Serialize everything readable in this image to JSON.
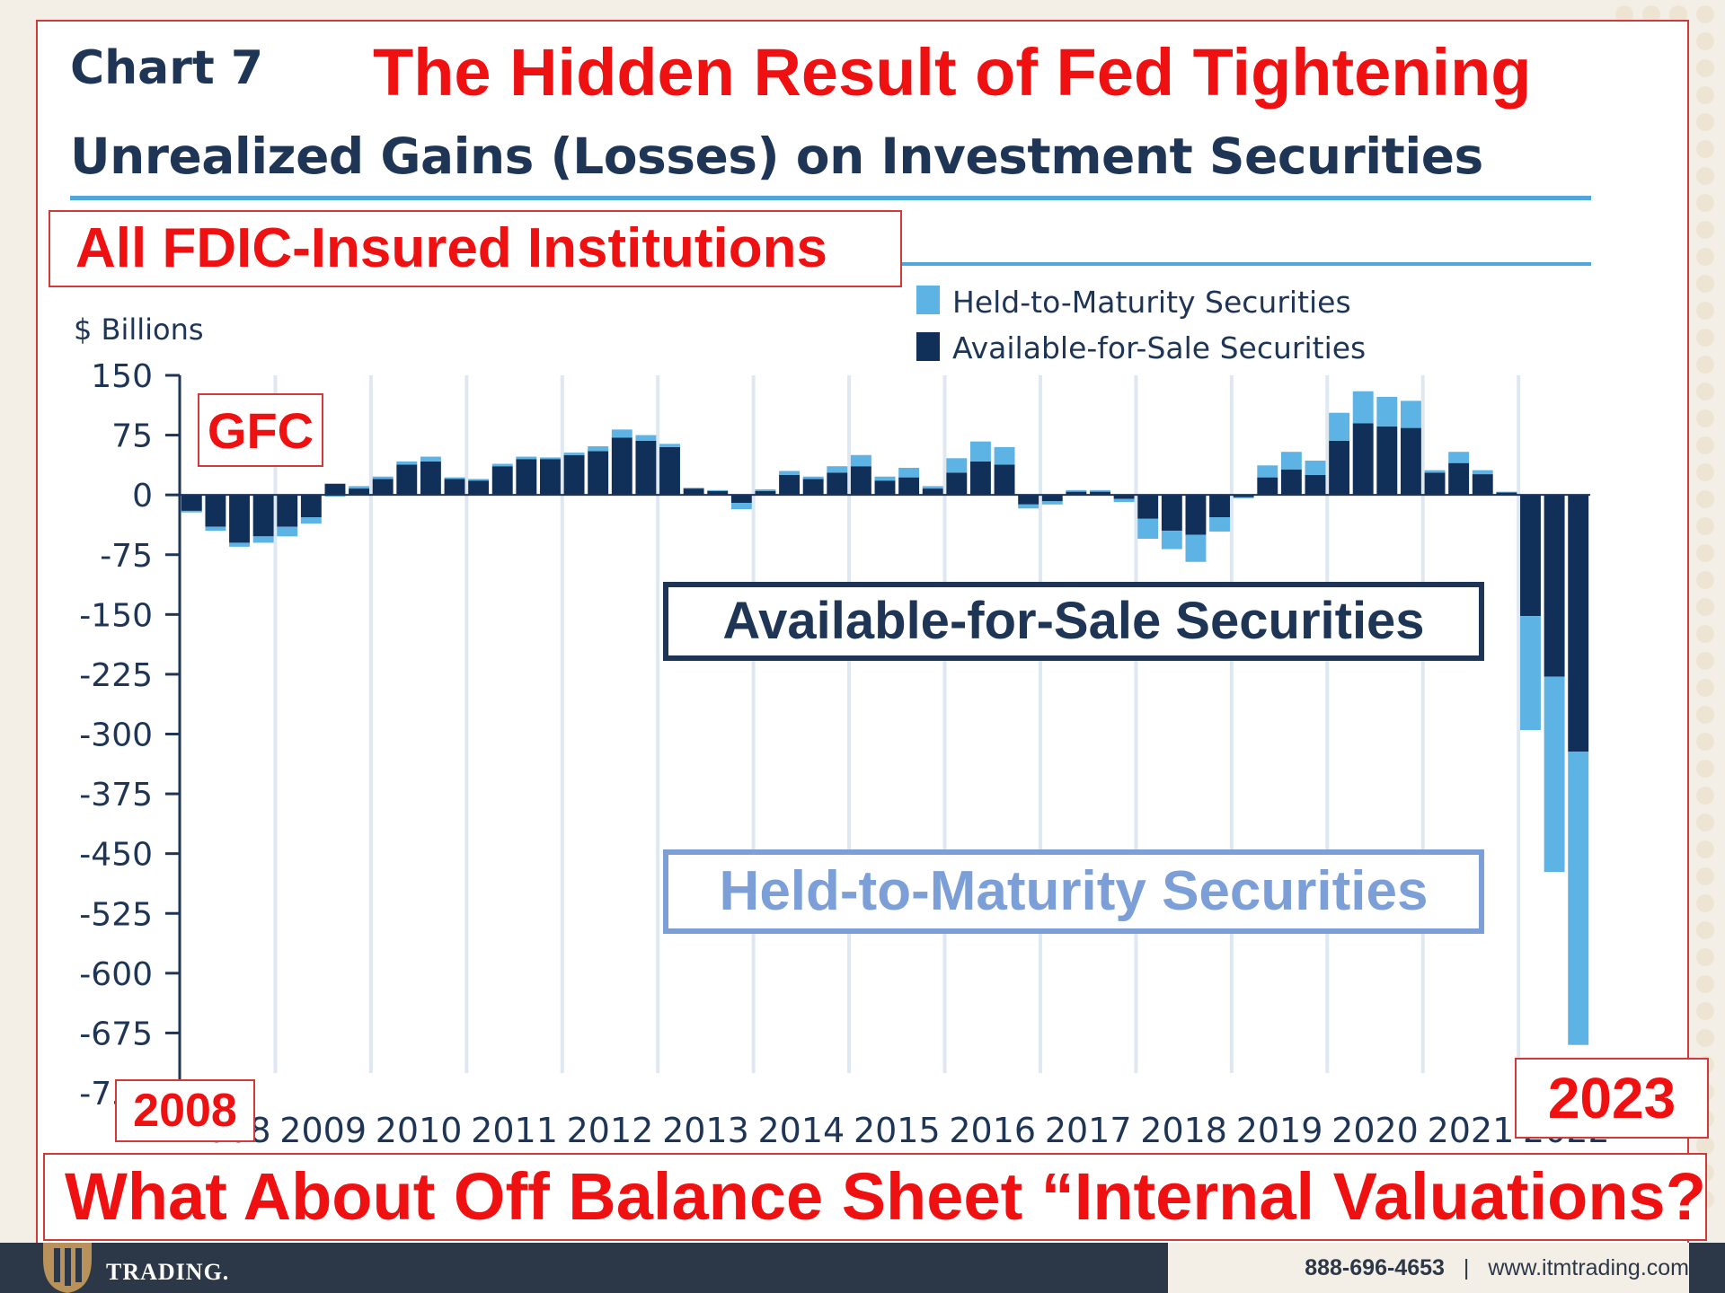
{
  "header": {
    "chart_label": "Chart 7",
    "headline": "The Hidden Result of Fed Tightening",
    "chart_title": "Unrealized Gains (Losses) on Investment Securities",
    "subset_label": "All FDIC-Insured Institutions"
  },
  "annotations": {
    "gfc": "GFC",
    "afs_callout": "Available-for-Sale Securities",
    "htm_callout": "Held-to-Maturity Securities",
    "start_year": "2008",
    "end_year": "2023",
    "question": "What About Off Balance Sheet “Internal Valuations?"
  },
  "footer": {
    "logo_text": "TRADING.",
    "phone": "888-696-4653",
    "website": "www.itmtrading.com"
  },
  "colors": {
    "held_to_maturity": "#5cb3e4",
    "available_for_sale": "#10305a",
    "accent_red": "#ef1111",
    "navy": "#1e3556",
    "gridline": "#dfe7f1"
  },
  "chart_data": {
    "type": "bar",
    "stacked": true,
    "frequency": "quarterly",
    "ylabel": "$ Billions",
    "ylim": [
      -750,
      150
    ],
    "yticks": [
      150,
      75,
      0,
      -75,
      -150,
      -225,
      -300,
      -375,
      -450,
      -525,
      -600,
      -675,
      -750
    ],
    "x_tick_labels": [
      "2008",
      "2009",
      "2010",
      "2011",
      "2012",
      "2013",
      "2014",
      "2015",
      "2016",
      "2017",
      "2018",
      "2019",
      "2020",
      "2021",
      "2022"
    ],
    "first_period": "2008 Q1",
    "legend": [
      "Held-to-Maturity Securities",
      "Available-for-Sale Securities"
    ],
    "legend_position": "top-right",
    "series": [
      {
        "name": "Available-for-Sale Securities",
        "values": [
          -20,
          -40,
          -60,
          -52,
          -40,
          -28,
          14,
          8,
          20,
          38,
          42,
          20,
          18,
          36,
          45,
          45,
          50,
          55,
          72,
          68,
          60,
          8,
          5,
          -10,
          5,
          25,
          20,
          28,
          36,
          18,
          22,
          8,
          28,
          42,
          38,
          -12,
          -8,
          4,
          4,
          -5,
          -30,
          -45,
          -50,
          -28,
          -3,
          22,
          32,
          25,
          68,
          90,
          86,
          84,
          28,
          40,
          26,
          3,
          -152,
          -228,
          -322
        ]
      },
      {
        "name": "Held-to-Maturity Securities",
        "values": [
          -2,
          -5,
          -5,
          -8,
          -12,
          -8,
          -2,
          3,
          3,
          4,
          6,
          2,
          2,
          3,
          3,
          2,
          3,
          6,
          10,
          7,
          4,
          1,
          1,
          -8,
          2,
          5,
          3,
          8,
          14,
          5,
          12,
          3,
          18,
          25,
          22,
          -5,
          -4,
          2,
          2,
          -4,
          -25,
          -23,
          -34,
          -18,
          -1,
          15,
          22,
          18,
          35,
          40,
          37,
          34,
          3,
          14,
          5,
          1,
          -143,
          -245,
          -368
        ]
      }
    ]
  }
}
